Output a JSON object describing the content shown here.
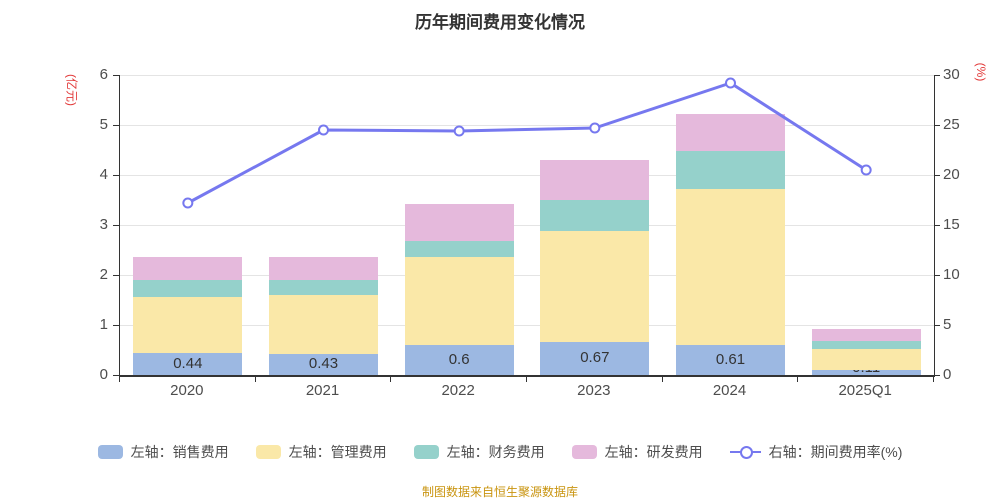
{
  "title": "历年期间费用变化情况",
  "footer": "制图数据来自恒生聚源数据库",
  "chart_data": {
    "type": "bar",
    "subtype": "stacked-bars-with-line",
    "title": "历年期间费用变化情况",
    "categories": [
      "2020",
      "2021",
      "2022",
      "2023",
      "2024",
      "2025Q1"
    ],
    "series": [
      {
        "name": "左轴：销售费用",
        "type": "bar",
        "axis": "left",
        "color": "#9cb8e2",
        "values": [
          0.44,
          0.43,
          0.6,
          0.67,
          0.61,
          0.11
        ],
        "labels": [
          "0.44",
          "0.43",
          "0.6",
          "0.67",
          "0.61",
          "0.11"
        ]
      },
      {
        "name": "左轴：管理费用",
        "type": "bar",
        "axis": "left",
        "color": "#fae8a8",
        "values": [
          1.12,
          1.18,
          1.77,
          2.21,
          3.11,
          0.42
        ]
      },
      {
        "name": "左轴：财务费用",
        "type": "bar",
        "axis": "left",
        "color": "#95d1cb",
        "values": [
          0.34,
          0.29,
          0.32,
          0.62,
          0.76,
          0.16
        ]
      },
      {
        "name": "左轴：研发费用",
        "type": "bar",
        "axis": "left",
        "color": "#e5b9dc",
        "values": [
          0.46,
          0.47,
          0.73,
          0.8,
          0.75,
          0.24
        ]
      },
      {
        "name": "右轴：期间费用率(%)",
        "type": "line",
        "axis": "right",
        "color": "#7678ef",
        "values": [
          17.2,
          24.5,
          24.4,
          24.7,
          29.2,
          20.5
        ]
      }
    ],
    "left_axis": {
      "name": "(亿元)",
      "min": 0,
      "max": 6,
      "ticks": [
        0,
        1,
        2,
        3,
        4,
        5,
        6
      ],
      "name_color": "#e23a3a"
    },
    "right_axis": {
      "name": "(%)",
      "min": 0,
      "max": 30,
      "ticks": [
        0,
        5,
        10,
        15,
        20,
        25,
        30
      ],
      "name_color": "#e23a3a"
    },
    "grid": true,
    "legend_position": "bottom",
    "stacked": true
  }
}
